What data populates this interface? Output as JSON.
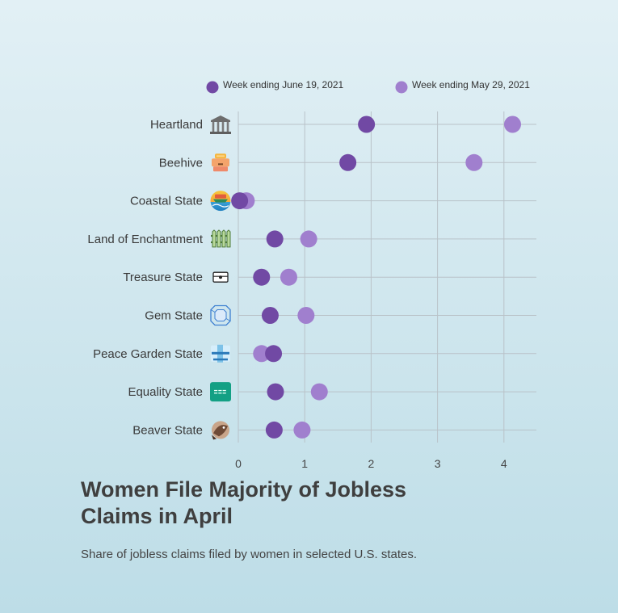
{
  "title": "Women File Majority of Jobless Claims in April",
  "subtitle": "Share of jobless claims filed by women in selected U.S. states.",
  "colors": {
    "series1": "#7149a4",
    "series2": "#a07fce",
    "grid": "#b9c2c8"
  },
  "chart_data": {
    "type": "scatter",
    "categories": [
      "Heartland",
      "Beehive",
      "Coastal State",
      "Land of Enchantment",
      "Treasure State",
      "Gem State",
      "Peace Garden State",
      "Equality State",
      "Beaver State"
    ],
    "category_icons": [
      "bank-icon",
      "beehive-icon",
      "coastal-island-icon",
      "fence-icon",
      "treasure-chest-icon",
      "gem-icon",
      "peace-garden-icon",
      "equality-sign-icon",
      "beaver-icon"
    ],
    "series": [
      {
        "name": "Week ending June 19, 2021",
        "values": [
          1.93,
          1.65,
          0.02,
          0.55,
          0.35,
          0.48,
          0.53,
          0.56,
          0.54
        ]
      },
      {
        "name": "Week ending May 29, 2021",
        "values": [
          4.13,
          3.55,
          0.12,
          1.06,
          0.76,
          1.02,
          0.35,
          1.22,
          0.96
        ]
      }
    ],
    "x_ticks": [
      "0",
      "1",
      "2",
      "3",
      "4"
    ],
    "xlim": [
      0,
      4.5
    ],
    "grid": true,
    "legend_position": "top"
  }
}
